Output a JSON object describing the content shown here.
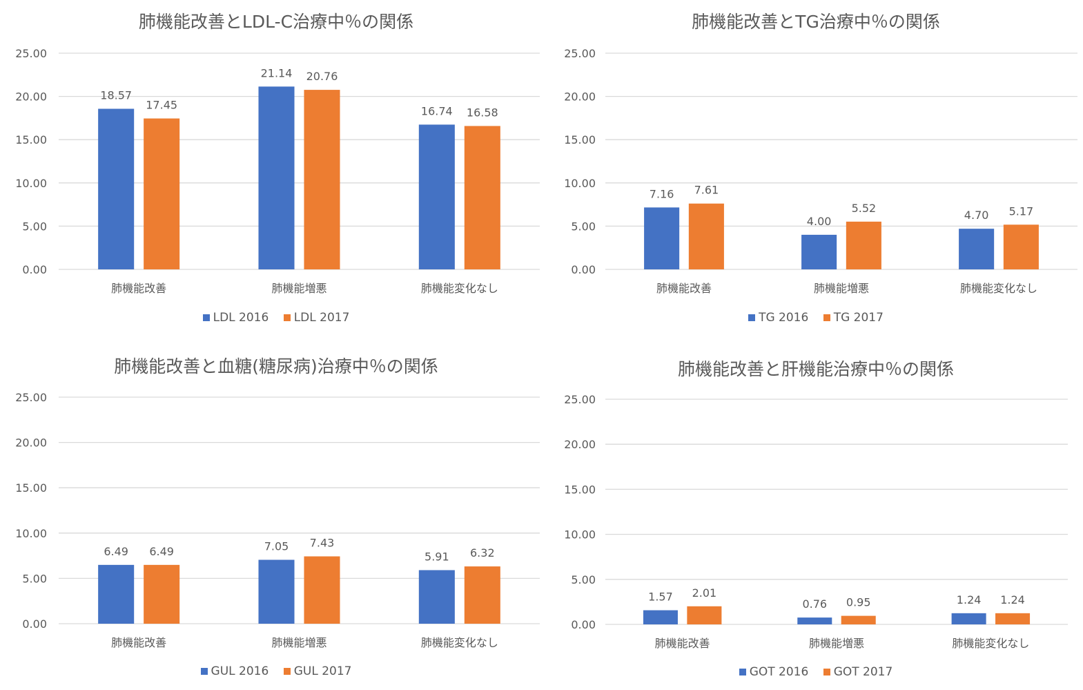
{
  "colors": {
    "series_2016": "#4472C4",
    "series_2017": "#ED7D31",
    "grid": "#D9D9D9",
    "text": "#595959"
  },
  "chart_data": [
    {
      "type": "bar",
      "title": "肺機能改善とLDL-C治療中％の関係",
      "categories": [
        "肺機能改善",
        "肺機能増悪",
        "肺機能変化なし"
      ],
      "series": [
        {
          "name": "LDL 2016",
          "values": [
            18.57,
            21.14,
            16.74
          ]
        },
        {
          "name": "LDL 2017",
          "values": [
            17.45,
            20.76,
            16.58
          ]
        }
      ],
      "value_labels": [
        [
          "18.57",
          "21.14",
          "16.74"
        ],
        [
          "17.45",
          "20.76",
          "16.58"
        ]
      ],
      "yticks": [
        "0.00",
        "5.00",
        "10.00",
        "15.00",
        "20.00",
        "25.00"
      ],
      "ylim": [
        0,
        25
      ],
      "grid": true,
      "legend": "bottom"
    },
    {
      "type": "bar",
      "title": "肺機能改善とTG治療中％の関係",
      "categories": [
        "肺機能改善",
        "肺機能増悪",
        "肺機能変化なし"
      ],
      "series": [
        {
          "name": "TG 2016",
          "values": [
            7.16,
            4.0,
            4.7
          ]
        },
        {
          "name": "TG 2017",
          "values": [
            7.61,
            5.52,
            5.17
          ]
        }
      ],
      "value_labels": [
        [
          "7.16",
          "4.00",
          "4.70"
        ],
        [
          "7.61",
          "5.52",
          "5.17"
        ]
      ],
      "yticks": [
        "0.00",
        "5.00",
        "10.00",
        "15.00",
        "20.00",
        "25.00"
      ],
      "ylim": [
        0,
        25
      ],
      "grid": true,
      "legend": "bottom"
    },
    {
      "type": "bar",
      "title": "肺機能改善と血糖(糖尿病)治療中％の関係",
      "categories": [
        "肺機能改善",
        "肺機能増悪",
        "肺機能変化なし"
      ],
      "series": [
        {
          "name": "GUL 2016",
          "values": [
            6.49,
            7.05,
            5.91
          ]
        },
        {
          "name": "GUL 2017",
          "values": [
            6.49,
            7.43,
            6.32
          ]
        }
      ],
      "value_labels": [
        [
          "6.49",
          "7.05",
          "5.91"
        ],
        [
          "6.49",
          "7.43",
          "6.32"
        ]
      ],
      "yticks": [
        "0.00",
        "5.00",
        "10.00",
        "15.00",
        "20.00",
        "25.00"
      ],
      "ylim": [
        0,
        25
      ],
      "grid": true,
      "legend": "bottom"
    },
    {
      "type": "bar",
      "title": "肺機能改善と肝機能治療中％の関係",
      "categories": [
        "肺機能改善",
        "肺機能増悪",
        "肺機能変化なし"
      ],
      "series": [
        {
          "name": "GOT 2016",
          "values": [
            1.57,
            0.76,
            1.24
          ]
        },
        {
          "name": "GOT 2017",
          "values": [
            2.01,
            0.95,
            1.24
          ]
        }
      ],
      "value_labels": [
        [
          "1.57",
          "0.76",
          "1.24"
        ],
        [
          "2.01",
          "0.95",
          "1.24"
        ]
      ],
      "yticks": [
        "0.00",
        "5.00",
        "10.00",
        "15.00",
        "20.00",
        "25.00"
      ],
      "ylim": [
        0,
        25
      ],
      "grid": true,
      "legend": "bottom"
    }
  ]
}
